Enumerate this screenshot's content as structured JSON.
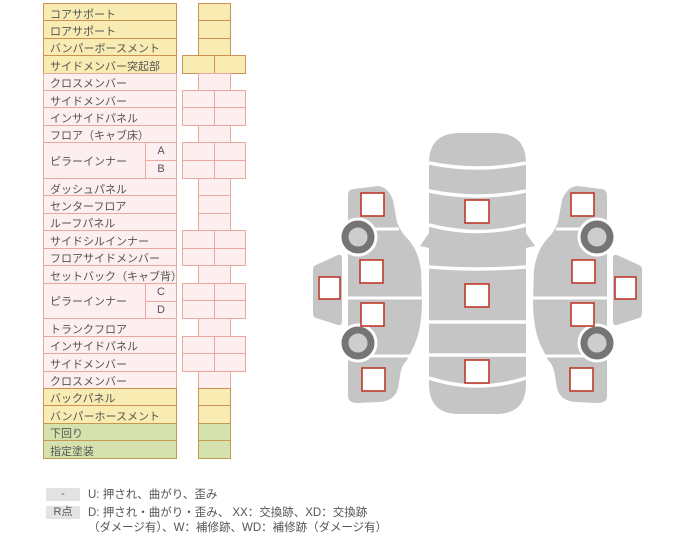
{
  "colors": {
    "yellow_bg": "#f8ecb2",
    "yellow_border": "#cf9055",
    "pink_bg": "#fdeef0",
    "pink_border": "#eaa89f",
    "green_bg": "#d5e2ad",
    "green_border": "#c29a52",
    "text_color": "#555555",
    "badge_bg": "#e3e3e3",
    "car_gray": "#c5c5c5",
    "wheel_dark": "#757575",
    "wheel_light": "#cdcdcd",
    "checkbox_border": "#c0392b",
    "checkbox_fill": "#ffffff"
  },
  "table": {
    "groups": [
      {
        "label": "コアサポート",
        "color": "yellow",
        "cells": "narrow"
      },
      {
        "label": "ロアサポート",
        "color": "yellow",
        "cells": "narrow"
      },
      {
        "label": "バンパーボースメント",
        "color": "yellow",
        "cells": "narrow"
      },
      {
        "label": "サイドメンバー突起部",
        "color": "yellow",
        "cells": "wide"
      },
      {
        "label": "クロスメンバー",
        "color": "pink",
        "cells": "narrow"
      },
      {
        "label": "サイドメンバー",
        "color": "pink",
        "cells": "wide"
      },
      {
        "label": "インサイドパネル",
        "color": "pink",
        "cells": "wide"
      },
      {
        "label": "フロア（キャブ床）",
        "color": "pink",
        "cells": "narrow"
      },
      {
        "label": "ピラーインナー",
        "color": "pink",
        "cells": "wide",
        "subs": [
          "A",
          "B"
        ]
      },
      {
        "label": "ダッシュパネル",
        "color": "pink",
        "cells": "narrow"
      },
      {
        "label": "センターフロア",
        "color": "pink",
        "cells": "narrow"
      },
      {
        "label": "ルーフパネル",
        "color": "pink",
        "cells": "narrow"
      },
      {
        "label": "サイドシルインナー",
        "color": "pink",
        "cells": "wide"
      },
      {
        "label": "フロアサイドメンバー",
        "color": "pink",
        "cells": "wide"
      },
      {
        "label": "セットバック（キャブ背）",
        "color": "pink",
        "cells": "narrow"
      },
      {
        "label": "ピラーインナー",
        "color": "pink",
        "cells": "wide",
        "subs": [
          "C",
          "D"
        ]
      },
      {
        "label": "トランクフロア",
        "color": "pink",
        "cells": "narrow"
      },
      {
        "label": "インサイドパネル",
        "color": "pink",
        "cells": "wide"
      },
      {
        "label": "サイドメンバー",
        "color": "pink",
        "cells": "wide"
      },
      {
        "label": "クロスメンバー",
        "color": "pink",
        "cells": "narrow"
      },
      {
        "label": "バックパネル",
        "color": "yellow",
        "cells": "narrow"
      },
      {
        "label": "バンパーホースメント",
        "color": "yellow",
        "cells": "narrow"
      },
      {
        "label": "下回り",
        "color": "green",
        "cells": "narrow"
      },
      {
        "label": "指定塗装",
        "color": "green",
        "cells": "narrow"
      }
    ]
  },
  "legend": {
    "rows": [
      {
        "badge": "-",
        "text": "U: 押され、曲がり、歪み"
      },
      {
        "badge": "R点",
        "text": "D: 押され・曲がり・歪み、 XX：交換跡、XD：交換跡\n（ダメージ有）、W：補修跡、WD：補修跡（ダメージ有）"
      }
    ]
  },
  "diagram": {
    "icons": [
      "car-top-view-icon",
      "car-side-left-icon",
      "car-side-right-icon",
      "wheel-icon",
      "damage-checkbox"
    ]
  }
}
